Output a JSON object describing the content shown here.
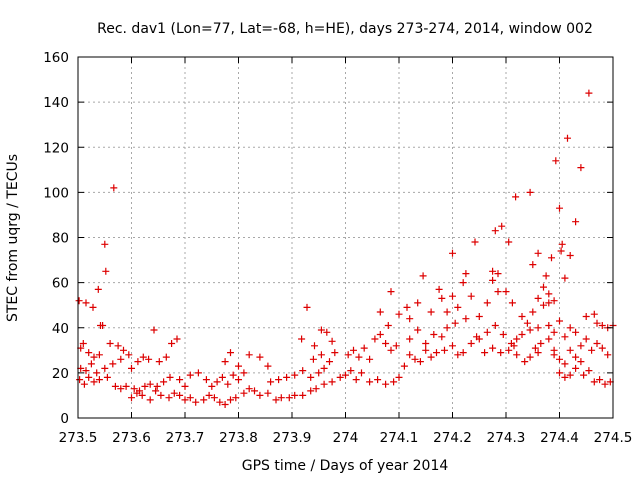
{
  "chart_data": {
    "type": "scatter",
    "title": "Rec. dav1 (Lon=77, Lat=-68, h=HE), days 273-274, 2014, window 002",
    "xlabel": "GPS time / Days of year 2014",
    "ylabel": "STEC from uqrg / TECUs",
    "xlim": [
      273.5,
      274.5
    ],
    "ylim": [
      0,
      160
    ],
    "x_ticks": [
      273.5,
      273.6,
      273.7,
      273.8,
      273.9,
      274.0,
      274.1,
      274.2,
      274.3,
      274.4,
      274.5
    ],
    "x_tick_labels": [
      "273.5",
      "273.6",
      "273.7",
      "273.8",
      "273.9",
      "274",
      "274.1",
      "274.2",
      "274.3",
      "274.4",
      "274.5"
    ],
    "y_ticks": [
      0,
      20,
      40,
      60,
      80,
      100,
      120,
      140,
      160
    ],
    "y_tick_labels": [
      "0",
      "20",
      "40",
      "60",
      "80",
      "100",
      "120",
      "140",
      "160"
    ],
    "grid": true,
    "marker": "+",
    "colors": {
      "points": "#dd0000",
      "grid": "#a8a8a8",
      "axes": "#000000"
    },
    "series": [
      {
        "values": [
          [
            273.502,
            52
          ],
          [
            273.515,
            51
          ],
          [
            273.528,
            49
          ],
          [
            273.538,
            57
          ],
          [
            273.542,
            41
          ],
          [
            273.546,
            41
          ],
          [
            273.55,
            77
          ],
          [
            273.552,
            65
          ],
          [
            273.567,
            102
          ],
          [
            273.505,
            31
          ],
          [
            273.51,
            33
          ],
          [
            273.52,
            29
          ],
          [
            273.53,
            27
          ],
          [
            273.54,
            28
          ],
          [
            273.56,
            33
          ],
          [
            273.575,
            32
          ],
          [
            273.585,
            30
          ],
          [
            273.505,
            22
          ],
          [
            273.515,
            21
          ],
          [
            273.525,
            24
          ],
          [
            273.535,
            20
          ],
          [
            273.55,
            22
          ],
          [
            273.565,
            24
          ],
          [
            273.58,
            26
          ],
          [
            273.595,
            28
          ],
          [
            273.503,
            17
          ],
          [
            273.512,
            15
          ],
          [
            273.52,
            18
          ],
          [
            273.53,
            16
          ],
          [
            273.54,
            17
          ],
          [
            273.555,
            18
          ],
          [
            273.57,
            14
          ],
          [
            273.58,
            13
          ],
          [
            273.59,
            14
          ],
          [
            273.605,
            13
          ],
          [
            273.615,
            12
          ],
          [
            273.625,
            14
          ],
          [
            273.635,
            15
          ],
          [
            273.648,
            14
          ],
          [
            273.6,
            22
          ],
          [
            273.612,
            25
          ],
          [
            273.622,
            27
          ],
          [
            273.632,
            26
          ],
          [
            273.642,
            39
          ],
          [
            273.652,
            25
          ],
          [
            273.665,
            27
          ],
          [
            273.675,
            33
          ],
          [
            273.685,
            35
          ],
          [
            273.6,
            9
          ],
          [
            273.61,
            11
          ],
          [
            273.62,
            10
          ],
          [
            273.635,
            8
          ],
          [
            273.645,
            12
          ],
          [
            273.655,
            10
          ],
          [
            273.67,
            9
          ],
          [
            273.68,
            11
          ],
          [
            273.66,
            16
          ],
          [
            273.672,
            18
          ],
          [
            273.69,
            17
          ],
          [
            273.7,
            14
          ],
          [
            273.71,
            19
          ],
          [
            273.725,
            20
          ],
          [
            273.74,
            17
          ],
          [
            273.69,
            10
          ],
          [
            273.7,
            8
          ],
          [
            273.71,
            9
          ],
          [
            273.72,
            7
          ],
          [
            273.735,
            8
          ],
          [
            273.745,
            10
          ],
          [
            273.755,
            9
          ],
          [
            273.765,
            7
          ],
          [
            273.775,
            6
          ],
          [
            273.785,
            8
          ],
          [
            273.795,
            9
          ],
          [
            273.75,
            14
          ],
          [
            273.76,
            16
          ],
          [
            273.77,
            18
          ],
          [
            273.78,
            15
          ],
          [
            273.79,
            19
          ],
          [
            273.8,
            17
          ],
          [
            273.81,
            20
          ],
          [
            273.775,
            25
          ],
          [
            273.785,
            29
          ],
          [
            273.8,
            23
          ],
          [
            273.82,
            28
          ],
          [
            273.84,
            27
          ],
          [
            273.855,
            23
          ],
          [
            273.81,
            11
          ],
          [
            273.82,
            13
          ],
          [
            273.83,
            12
          ],
          [
            273.84,
            10
          ],
          [
            273.855,
            11
          ],
          [
            273.87,
            8
          ],
          [
            273.88,
            9
          ],
          [
            273.895,
            9
          ],
          [
            273.905,
            10
          ],
          [
            273.92,
            10
          ],
          [
            273.935,
            12
          ],
          [
            273.86,
            16
          ],
          [
            273.875,
            17
          ],
          [
            273.89,
            18
          ],
          [
            273.905,
            19
          ],
          [
            273.92,
            21
          ],
          [
            273.935,
            18
          ],
          [
            273.95,
            20
          ],
          [
            273.96,
            22
          ],
          [
            273.918,
            35
          ],
          [
            273.928,
            49
          ],
          [
            273.942,
            32
          ],
          [
            273.955,
            39
          ],
          [
            273.965,
            38
          ],
          [
            273.975,
            34
          ],
          [
            273.94,
            26
          ],
          [
            273.955,
            28
          ],
          [
            273.97,
            25
          ],
          [
            273.98,
            29
          ],
          [
            273.945,
            13
          ],
          [
            273.96,
            15
          ],
          [
            273.975,
            16
          ],
          [
            273.99,
            18
          ],
          [
            274.0,
            19
          ],
          [
            274.01,
            21
          ],
          [
            274.02,
            17
          ],
          [
            274.03,
            20
          ],
          [
            274.045,
            16
          ],
          [
            274.06,
            17
          ],
          [
            274.075,
            15
          ],
          [
            274.09,
            16
          ],
          [
            274.1,
            18
          ],
          [
            274.005,
            28
          ],
          [
            274.015,
            30
          ],
          [
            274.025,
            27
          ],
          [
            274.035,
            31
          ],
          [
            274.045,
            26
          ],
          [
            274.055,
            35
          ],
          [
            274.065,
            37
          ],
          [
            274.075,
            33
          ],
          [
            274.085,
            30
          ],
          [
            274.095,
            32
          ],
          [
            274.065,
            47
          ],
          [
            274.08,
            41
          ],
          [
            274.085,
            56
          ],
          [
            274.1,
            46
          ],
          [
            274.115,
            49
          ],
          [
            274.12,
            44
          ],
          [
            274.135,
            51
          ],
          [
            274.145,
            63
          ],
          [
            274.16,
            47
          ],
          [
            274.175,
            57
          ],
          [
            274.18,
            53
          ],
          [
            274.11,
            23
          ],
          [
            274.12,
            28
          ],
          [
            274.13,
            26
          ],
          [
            274.14,
            25
          ],
          [
            274.15,
            30
          ],
          [
            274.16,
            27
          ],
          [
            274.17,
            29
          ],
          [
            274.12,
            35
          ],
          [
            274.135,
            39
          ],
          [
            274.15,
            33
          ],
          [
            274.165,
            37
          ],
          [
            274.18,
            36
          ],
          [
            274.19,
            40
          ],
          [
            274.185,
            30
          ],
          [
            274.2,
            32
          ],
          [
            274.21,
            28
          ],
          [
            274.22,
            29
          ],
          [
            274.235,
            33
          ],
          [
            274.245,
            36
          ],
          [
            274.19,
            47
          ],
          [
            274.2,
            54
          ],
          [
            274.205,
            42
          ],
          [
            274.21,
            49
          ],
          [
            274.22,
            60
          ],
          [
            274.225,
            44
          ],
          [
            274.235,
            54
          ],
          [
            274.242,
            78
          ],
          [
            274.25,
            45
          ],
          [
            274.265,
            51
          ],
          [
            274.275,
            61
          ],
          [
            274.285,
            56
          ],
          [
            274.2,
            73
          ],
          [
            274.225,
            64
          ],
          [
            274.25,
            35
          ],
          [
            274.265,
            38
          ],
          [
            274.28,
            41
          ],
          [
            274.295,
            37
          ],
          [
            274.31,
            33
          ],
          [
            274.32,
            35
          ],
          [
            274.26,
            29
          ],
          [
            274.275,
            31
          ],
          [
            274.29,
            29
          ],
          [
            274.305,
            30
          ],
          [
            274.315,
            32
          ],
          [
            274.275,
            65
          ],
          [
            274.28,
            83
          ],
          [
            274.285,
            64
          ],
          [
            274.292,
            85
          ],
          [
            274.3,
            56
          ],
          [
            274.305,
            78
          ],
          [
            274.312,
            51
          ],
          [
            274.318,
            98
          ],
          [
            274.345,
            100
          ],
          [
            274.33,
            45
          ],
          [
            274.34,
            42
          ],
          [
            274.35,
            47
          ],
          [
            274.36,
            40
          ],
          [
            274.33,
            37
          ],
          [
            274.345,
            39
          ],
          [
            274.355,
            31
          ],
          [
            274.365,
            33
          ],
          [
            274.38,
            35
          ],
          [
            274.39,
            30
          ],
          [
            274.32,
            28
          ],
          [
            274.335,
            25
          ],
          [
            274.345,
            27
          ],
          [
            274.36,
            29
          ],
          [
            274.35,
            68
          ],
          [
            274.36,
            73
          ],
          [
            274.37,
            58
          ],
          [
            274.375,
            63
          ],
          [
            274.38,
            55
          ],
          [
            274.385,
            71
          ],
          [
            274.39,
            52
          ],
          [
            274.36,
            53
          ],
          [
            274.37,
            50
          ],
          [
            274.38,
            51
          ],
          [
            274.39,
            28
          ],
          [
            274.4,
            26
          ],
          [
            274.41,
            24
          ],
          [
            274.42,
            30
          ],
          [
            274.43,
            27
          ],
          [
            274.44,
            25
          ],
          [
            274.38,
            41
          ],
          [
            274.39,
            38
          ],
          [
            274.4,
            43
          ],
          [
            274.41,
            36
          ],
          [
            274.42,
            40
          ],
          [
            274.43,
            38
          ],
          [
            274.393,
            114
          ],
          [
            274.4,
            93
          ],
          [
            274.403,
            74
          ],
          [
            274.405,
            77
          ],
          [
            274.41,
            62
          ],
          [
            274.415,
            124
          ],
          [
            274.42,
            72
          ],
          [
            274.43,
            87
          ],
          [
            274.44,
            111
          ],
          [
            274.455,
            144
          ],
          [
            274.4,
            20
          ],
          [
            274.41,
            18
          ],
          [
            274.42,
            19
          ],
          [
            274.43,
            22
          ],
          [
            274.445,
            19
          ],
          [
            274.455,
            21
          ],
          [
            274.465,
            16
          ],
          [
            274.475,
            17
          ],
          [
            274.485,
            15
          ],
          [
            274.495,
            16
          ],
          [
            274.44,
            32
          ],
          [
            274.45,
            35
          ],
          [
            274.46,
            30
          ],
          [
            274.47,
            33
          ],
          [
            274.48,
            31
          ],
          [
            274.49,
            28
          ],
          [
            274.45,
            45
          ],
          [
            274.465,
            46
          ],
          [
            274.47,
            42
          ],
          [
            274.48,
            41
          ],
          [
            274.49,
            40
          ],
          [
            274.5,
            41
          ]
        ]
      }
    ]
  }
}
